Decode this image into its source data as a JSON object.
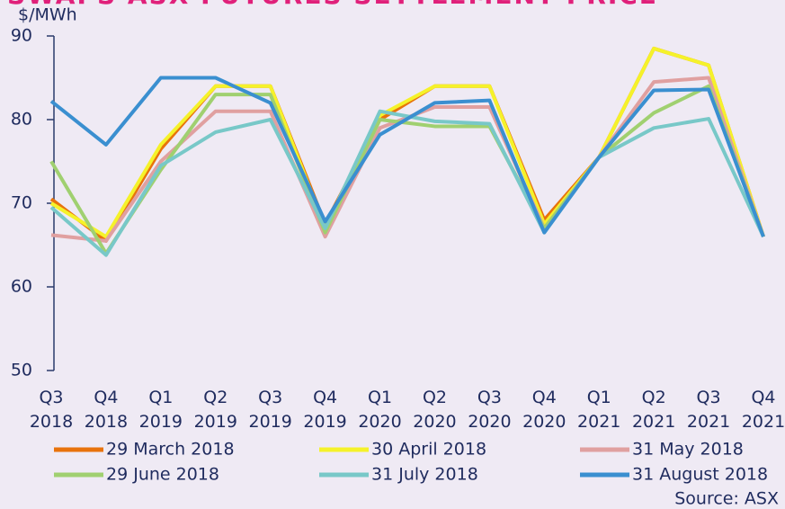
{
  "chart_data": {
    "type": "line",
    "title": "SWAPS ASX FUTURES SETTLEMENT PRICE",
    "y_label": "$/MWh",
    "source": "Source: ASX",
    "categories": [
      "Q3 2018",
      "Q4 2018",
      "Q1 2019",
      "Q2 2019",
      "Q3 2019",
      "Q4 2019",
      "Q1 2020",
      "Q2 2020",
      "Q3 2020",
      "Q4 2020",
      "Q1 2021",
      "Q2 2021",
      "Q3 2021",
      "Q4 2021"
    ],
    "ylim": [
      50,
      90
    ],
    "yticks": [
      50,
      60,
      70,
      80,
      90
    ],
    "grid": false,
    "series": [
      {
        "name": "29 March 2018",
        "color": "#e8730c",
        "values": [
          70.5,
          65.5,
          76.5,
          84,
          84,
          67.5,
          80,
          84,
          84,
          68,
          75.5,
          88.5,
          86.5,
          66
        ]
      },
      {
        "name": "30 April 2018",
        "color": "#f5f22a",
        "values": [
          70,
          66,
          77,
          84,
          84,
          67,
          80.5,
          84,
          84,
          67.5,
          75.5,
          88.5,
          86.5,
          66
        ]
      },
      {
        "name": "31 May 2018",
        "color": "#e0a0a0",
        "values": [
          66.2,
          65.5,
          75,
          81,
          81,
          66,
          79,
          81.5,
          81.5,
          67,
          75.5,
          84.5,
          85,
          66
        ]
      },
      {
        "name": "29 June 2018",
        "color": "#a0d070",
        "values": [
          75,
          64,
          74,
          83,
          83,
          66.5,
          80,
          79.2,
          79.2,
          67,
          75.5,
          80.8,
          84,
          66
        ]
      },
      {
        "name": "31 July 2018",
        "color": "#78c8c8",
        "values": [
          69.5,
          63.8,
          74.5,
          78.5,
          80,
          67,
          81,
          79.8,
          79.5,
          66.5,
          75.5,
          79,
          80.1,
          66
        ]
      },
      {
        "name": "31 August 2018",
        "color": "#3a8fd0",
        "values": [
          82.2,
          77,
          85,
          85,
          82,
          67.8,
          78.2,
          82,
          82.3,
          66.5,
          75.5,
          83.5,
          83.6,
          66
        ]
      }
    ]
  }
}
